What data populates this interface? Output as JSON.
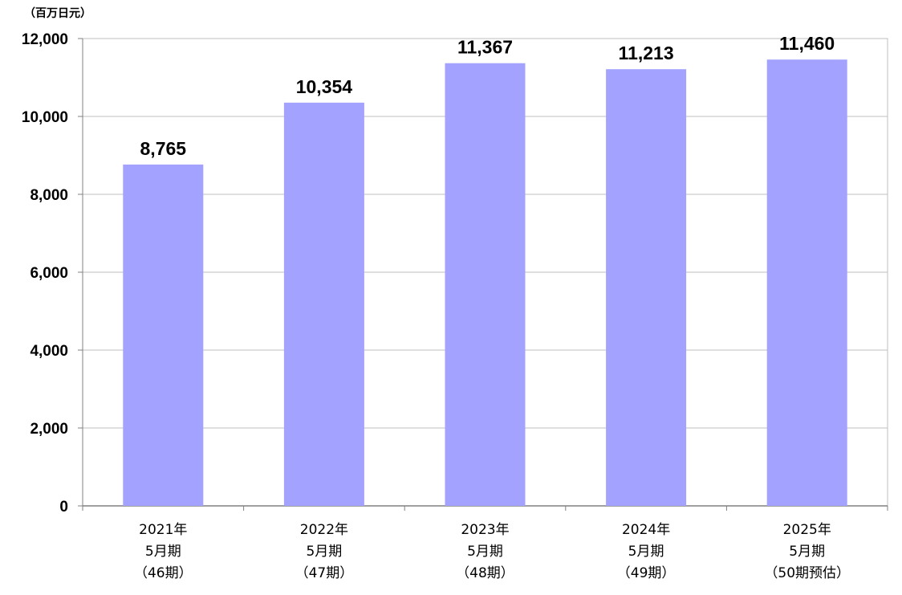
{
  "chart_data": {
    "type": "bar",
    "unit_label": "（百万日元）",
    "categories": [
      [
        "2021年",
        "5月期",
        "（46期）"
      ],
      [
        "2022年",
        "5月期",
        "（47期）"
      ],
      [
        "2023年",
        "5月期",
        "（48期）"
      ],
      [
        "2024年",
        "5月期",
        "（49期）"
      ],
      [
        "2025年",
        "5月期",
        "（50期预估）"
      ]
    ],
    "values": [
      8765,
      10354,
      11367,
      11213,
      11460
    ],
    "data_labels": [
      "8,765",
      "10,354",
      "11,367",
      "11,213",
      "11,460"
    ],
    "yticks": [
      "0",
      "2,000",
      "4,000",
      "6,000",
      "8,000",
      "10,000",
      "12,000"
    ],
    "ylim": [
      0,
      12000
    ],
    "bar_color": "#a3a3ff",
    "grid": true,
    "legend": "none"
  }
}
